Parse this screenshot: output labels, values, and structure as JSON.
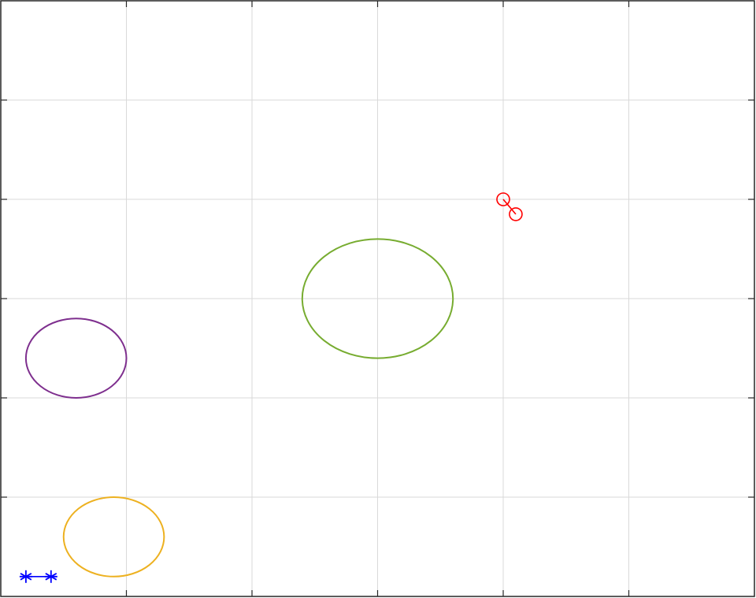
{
  "chart_data": {
    "type": "line",
    "title": "",
    "xlabel": "",
    "ylabel": "",
    "xlim": [
      0,
      6
    ],
    "ylim": [
      0,
      6
    ],
    "x_ticks": [
      0,
      1,
      2,
      3,
      4,
      5,
      6
    ],
    "y_ticks": [
      0,
      1,
      2,
      3,
      4,
      5,
      6
    ],
    "grid": true,
    "tick_labels_shown": false,
    "legend": "none",
    "series": [
      {
        "shape": "ellipse",
        "color": "#77ac30",
        "center": [
          3.0,
          3.0
        ],
        "radii": [
          0.6,
          0.6
        ]
      },
      {
        "shape": "ellipse",
        "color": "#7e2f8e",
        "center": [
          0.6,
          2.4
        ],
        "radii": [
          0.4,
          0.4
        ]
      },
      {
        "shape": "ellipse",
        "color": "#edb120",
        "center": [
          0.9,
          0.6
        ],
        "radii": [
          0.4,
          0.4
        ]
      },
      {
        "shape": "line",
        "marker": "o",
        "color": "#ff0000",
        "x": [
          4.0,
          4.1
        ],
        "y": [
          4.0,
          3.85
        ]
      },
      {
        "shape": "line",
        "marker": "*",
        "color": "#0000ff",
        "x": [
          0.2,
          0.4
        ],
        "y": [
          0.2,
          0.2
        ]
      }
    ]
  }
}
